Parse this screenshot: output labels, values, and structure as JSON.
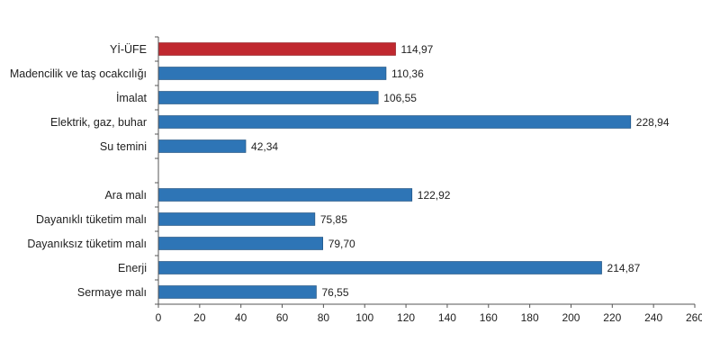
{
  "chart_data": {
    "type": "bar",
    "orientation": "horizontal",
    "categories": [
      "Yİ-ÜFE",
      "Madencilik ve taş ocakcılığı",
      "İmalat",
      "Elektrik, gaz, buhar",
      "Su temini",
      "",
      "Ara malı",
      "Dayanıklı tüketim malı",
      "Dayanıksız tüketim malı",
      "Enerji",
      "Sermaye malı"
    ],
    "values": [
      114.97,
      110.36,
      106.55,
      228.94,
      42.34,
      null,
      122.92,
      75.85,
      79.7,
      214.87,
      76.55
    ],
    "value_labels": [
      "114,97",
      "110,36",
      "106,55",
      "228,94",
      "42,34",
      "",
      "122,92",
      "75,85",
      "79,70",
      "214,87",
      "76,55"
    ],
    "highlight_index": 0,
    "colors": {
      "bar": "#2e75b6",
      "highlight": "#c0282f",
      "bar_edge": "#1f4e79",
      "axis": "#555555"
    },
    "xlim": [
      0,
      260
    ],
    "xticks": [
      "0",
      "20",
      "40",
      "60",
      "80",
      "100",
      "120",
      "140",
      "160",
      "180",
      "200",
      "220",
      "240",
      "260"
    ],
    "grid": false,
    "title": "",
    "xlabel": "",
    "ylabel": ""
  }
}
